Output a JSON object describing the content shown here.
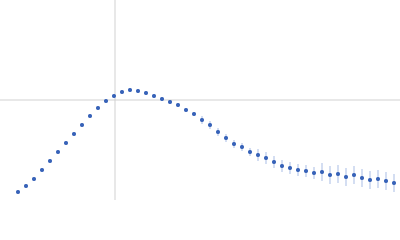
{
  "chart_data": {
    "type": "scatter",
    "color": "#3762b8",
    "error_color": "#a8bce6",
    "grid": true,
    "xlim": [
      0,
      400
    ],
    "ylim": [
      0,
      200
    ],
    "xticks": [
      115
    ],
    "yticks": [
      100
    ],
    "x": [
      18,
      26,
      34,
      42,
      50,
      58,
      66,
      74,
      82,
      90,
      98,
      106,
      114,
      122,
      130,
      138,
      146,
      154,
      162,
      170,
      178,
      186,
      194,
      202,
      210,
      218,
      226,
      234,
      242,
      250,
      258,
      266,
      274,
      282,
      290,
      298,
      306,
      314,
      322,
      330,
      338,
      346,
      354,
      362,
      370,
      378,
      386,
      394
    ],
    "values": [
      8,
      14,
      21,
      30,
      39,
      48,
      57,
      66,
      75,
      84,
      92,
      99,
      104,
      108,
      110,
      109,
      107,
      104,
      101,
      98,
      95,
      90,
      86,
      80,
      75,
      68,
      62,
      56,
      53,
      48,
      45,
      42,
      38,
      34,
      32,
      30,
      29,
      27,
      28,
      25,
      26,
      23,
      25,
      22,
      20,
      21,
      19,
      17
    ],
    "errors": [
      1,
      1,
      1,
      1,
      1,
      1,
      1,
      1,
      1,
      1,
      1,
      1,
      1,
      1,
      2,
      2,
      2,
      2,
      2,
      2,
      2,
      2,
      2,
      4,
      4,
      4,
      4,
      4,
      4,
      4,
      6,
      6,
      6,
      6,
      6,
      6,
      6,
      6,
      9,
      9,
      9,
      9,
      9,
      9,
      9,
      9,
      9,
      9
    ]
  }
}
